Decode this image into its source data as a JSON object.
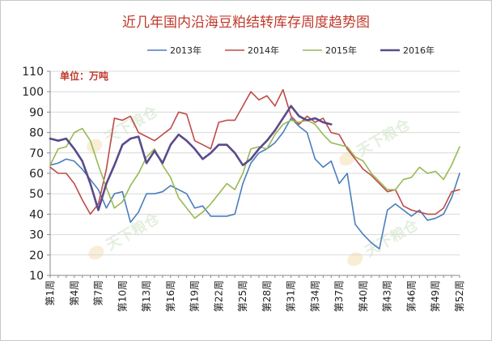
{
  "chart_data": {
    "type": "line",
    "title": "近几年国内沿海豆粕结转库存周度趋势图",
    "unit_label": "单位：万吨",
    "watermark_text": "天下粮仓",
    "ylim": [
      10,
      110
    ],
    "yticks": [
      10,
      20,
      30,
      40,
      50,
      60,
      70,
      80,
      90,
      100,
      110
    ],
    "grid": true,
    "legend_position": "top",
    "x": [
      "第1周",
      "第2周",
      "第3周",
      "第4周",
      "第5周",
      "第6周",
      "第7周",
      "第8周",
      "第9周",
      "第10周",
      "第11周",
      "第12周",
      "第13周",
      "第14周",
      "第15周",
      "第16周",
      "第17周",
      "第18周",
      "第19周",
      "第20周",
      "第21周",
      "第22周",
      "第23周",
      "第24周",
      "第25周",
      "第26周",
      "第27周",
      "第28周",
      "第29周",
      "第30周",
      "第31周",
      "第32周",
      "第33周",
      "第34周",
      "第35周",
      "第36周",
      "第37周",
      "第38周",
      "第39周",
      "第40周",
      "第41周",
      "第42周",
      "第43周",
      "第44周",
      "第45周",
      "第46周",
      "第47周",
      "第48周",
      "第49周",
      "第50周",
      "第51周",
      "第52周"
    ],
    "xtick_labels": [
      "第1周",
      "第4周",
      "第7周",
      "第10周",
      "第13周",
      "第16周",
      "第19周",
      "第22周",
      "第25周",
      "第28周",
      "第31周",
      "第34周",
      "第37周",
      "第40周",
      "第43周",
      "第46周",
      "第49周",
      "第52周"
    ],
    "series": [
      {
        "name": "2013年",
        "color": "#4a7ebb",
        "width": 1.6,
        "values": [
          64,
          65,
          67,
          66,
          62,
          57,
          52,
          43,
          50,
          51,
          36,
          41,
          50,
          50,
          51,
          54,
          52,
          50,
          43,
          44,
          39,
          39,
          39,
          40,
          55,
          65,
          70,
          72,
          75,
          80,
          87,
          83,
          80,
          67,
          63,
          66,
          55,
          60,
          35,
          30,
          26,
          23,
          42,
          45,
          42,
          39,
          42,
          37,
          38,
          40,
          48,
          60
        ]
      },
      {
        "name": "2014年",
        "color": "#be4b48",
        "width": 1.6,
        "values": [
          63,
          60,
          60,
          55,
          47,
          40,
          45,
          62,
          87,
          86,
          88,
          80,
          78,
          76,
          79,
          82,
          90,
          89,
          76,
          74,
          72,
          85,
          86,
          86,
          93,
          100,
          96,
          98,
          93,
          101,
          88,
          84,
          88,
          85,
          87,
          80,
          79,
          72,
          67,
          62,
          59,
          55,
          51,
          52,
          44,
          42,
          41,
          40,
          40,
          43,
          51,
          52
        ]
      },
      {
        "name": "2015年",
        "color": "#98b954",
        "width": 1.6,
        "values": [
          64,
          72,
          73,
          80,
          82,
          76,
          64,
          53,
          43,
          46,
          54,
          60,
          68,
          72,
          64,
          58,
          48,
          43,
          38,
          41,
          45,
          50,
          55,
          52,
          60,
          72,
          73,
          72,
          79,
          84,
          86,
          85,
          86,
          84,
          79,
          75,
          74,
          73,
          68,
          66,
          60,
          56,
          52,
          52,
          57,
          58,
          63,
          60,
          61,
          57,
          64,
          73
        ]
      },
      {
        "name": "2016年",
        "color": "#5a4a8c",
        "width": 2.6,
        "values": [
          77,
          76,
          77,
          72,
          66,
          55,
          42,
          55,
          64,
          74,
          77,
          78,
          65,
          71,
          65,
          74,
          79,
          76,
          72,
          67,
          70,
          74,
          74,
          70,
          64,
          67,
          72,
          76,
          81,
          87,
          93,
          88,
          86,
          87,
          85,
          84,
          null,
          null,
          null,
          null,
          null,
          null,
          null,
          null,
          null,
          null,
          null,
          null,
          null,
          null,
          null,
          null
        ]
      }
    ]
  }
}
